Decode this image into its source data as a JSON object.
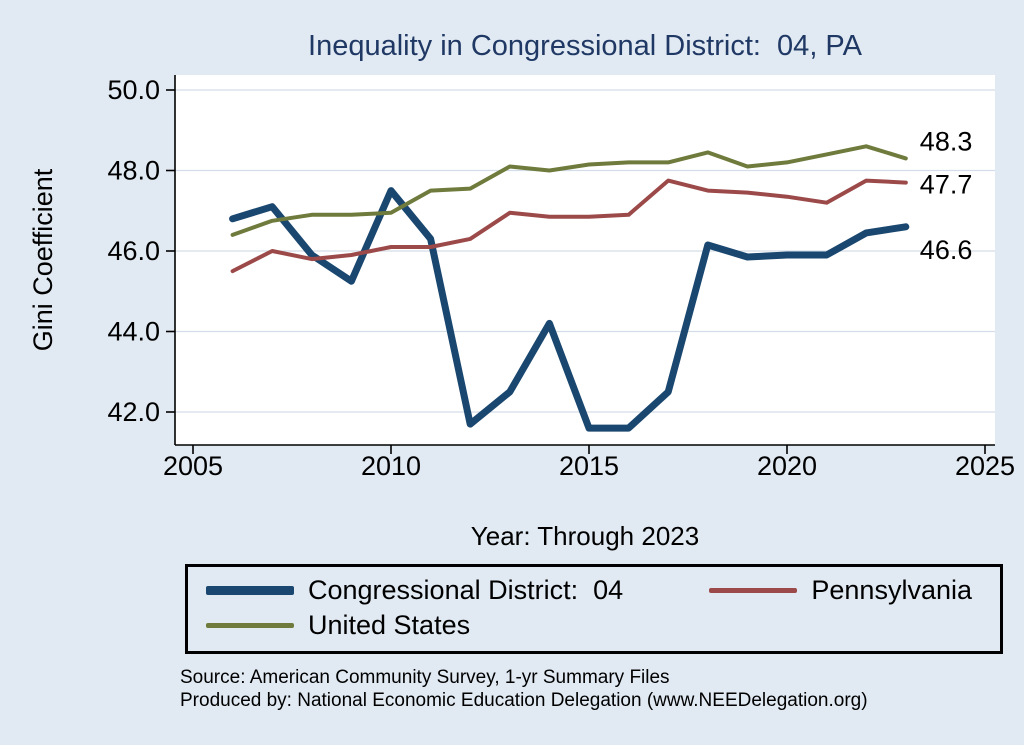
{
  "source": {
    "line1": "Source: American Community Survey, 1-yr Summary Files",
    "line2": "Produced by: National Economic Education Delegation (www.NEEDelegation.org)"
  },
  "colors": {
    "background": "#e1eaf3",
    "plot_background": "#ffffff",
    "grid": "#d3dde8",
    "axis": "#000000",
    "title": "#1f3864",
    "text": "#000000"
  },
  "chart_data": {
    "type": "line",
    "title": "Inequality in Congressional District:  04, PA",
    "xlabel": "Year: Through 2023",
    "ylabel": "Gini Coefficient",
    "x": [
      2006,
      2007,
      2008,
      2009,
      2010,
      2011,
      2012,
      2013,
      2014,
      2015,
      2016,
      2017,
      2018,
      2019,
      2020,
      2021,
      2022,
      2023
    ],
    "series": [
      {
        "name": "Congressional District:  04",
        "color": "#1a476f",
        "width": 7,
        "values": [
          46.8,
          47.1,
          45.9,
          45.25,
          47.5,
          46.3,
          41.7,
          42.5,
          44.2,
          41.6,
          41.6,
          42.5,
          46.15,
          45.85,
          45.9,
          45.9,
          46.45,
          46.6
        ]
      },
      {
        "name": "Pennsylvania",
        "color": "#9c4a49",
        "width": 4,
        "values": [
          45.5,
          46.0,
          45.8,
          45.9,
          46.1,
          46.1,
          46.3,
          46.95,
          46.85,
          46.85,
          46.9,
          47.75,
          47.5,
          47.45,
          47.35,
          47.2,
          47.75,
          47.7
        ]
      },
      {
        "name": "United States",
        "color": "#6e7b3c",
        "width": 4,
        "values": [
          46.4,
          46.75,
          46.9,
          46.9,
          46.95,
          47.5,
          47.55,
          48.1,
          48.0,
          48.15,
          48.2,
          48.2,
          48.45,
          48.1,
          48.2,
          48.4,
          48.6,
          48.3
        ]
      }
    ],
    "xlim": [
      2005,
      2025
    ],
    "ylim": [
      41.2,
      50.4
    ],
    "xticks": [
      2005,
      2010,
      2015,
      2020,
      2025
    ],
    "yticks": [
      42,
      44,
      46,
      48,
      50
    ],
    "grid": "horizontal",
    "legend_position": "bottom",
    "end_labels": [
      {
        "label": "48.3",
        "value": 48.3
      },
      {
        "label": "47.7",
        "value": 47.7
      },
      {
        "label": "46.6",
        "value": 46.6
      }
    ]
  }
}
